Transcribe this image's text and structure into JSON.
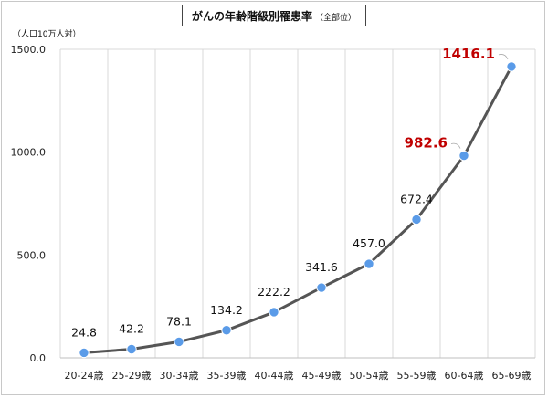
{
  "chart_data": {
    "type": "line",
    "title": "がんの年齢階級別罹患率",
    "subtitle": "（全部位）",
    "ylabel": "（人口10万人対）",
    "xlabel": "",
    "categories": [
      "20-24歳",
      "25-29歳",
      "30-34歳",
      "35-39歳",
      "40-44歳",
      "45-49歳",
      "50-54歳",
      "55-59歳",
      "60-64歳",
      "65-69歳"
    ],
    "values": [
      24.8,
      42.2,
      78.1,
      134.2,
      222.2,
      341.6,
      457.0,
      672.4,
      982.6,
      1416.1
    ],
    "value_labels": [
      "24.8",
      "42.2",
      "78.1",
      "134.2",
      "222.2",
      "341.6",
      "457.0",
      "672.4",
      "982.6",
      "1416.1"
    ],
    "highlighted_indices": [
      8,
      9
    ],
    "ylim": [
      0,
      1500
    ],
    "yticks": [
      0,
      500,
      1000,
      1500
    ],
    "ytick_labels": [
      "0.0",
      "500.0",
      "1000.0",
      "1500.0"
    ],
    "grid": "vertical",
    "legend": "none"
  },
  "colors": {
    "line": "#555555",
    "marker": "#5a9be8",
    "highlight_label": "#c00000",
    "grid": "#d9d9d9"
  }
}
